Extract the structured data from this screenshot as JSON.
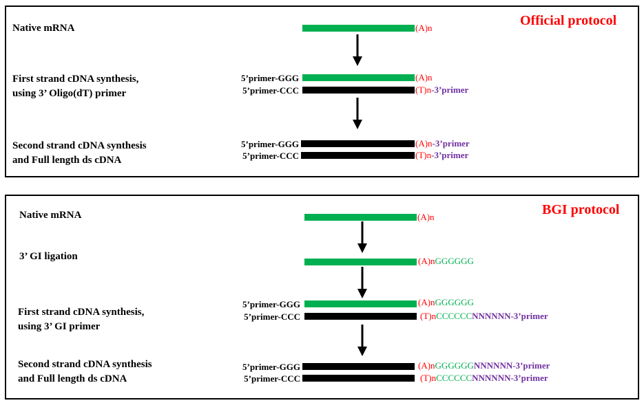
{
  "colors": {
    "title": "#ff0000",
    "mrna": "#00b050",
    "cdna": "#000000",
    "polyA": "#ff0000",
    "g_tail": "#00b050",
    "primer_3": "#7030a0"
  },
  "official": {
    "title": "Official protocol",
    "steps": [
      {
        "label": "Native mRNA"
      },
      {
        "label": "First strand cDNA synthesis,",
        "label2": "using 3’ Oligo(dT)  primer"
      },
      {
        "label": "Second strand cDNA synthesis",
        "label2": "and Full length ds cDNA"
      }
    ],
    "rows": {
      "s1_tail": "(A)n",
      "s2_top_left": "5’primer-GGG",
      "s2_top_tail": "(A)n",
      "s2_bot_left": "5’primer-CCC",
      "s2_bot_tail_a": "(T)n",
      "s2_bot_tail_b": "-3’primer",
      "s3_top_left": "5’primer-GGG",
      "s3_top_tail_a": "(A)n",
      "s3_top_tail_b": "-3’primer",
      "s3_bot_left": "5’primer-CCC",
      "s3_bot_tail_a": "(T)n",
      "s3_bot_tail_b": "-3’primer"
    }
  },
  "bgi": {
    "title": "BGI protocol",
    "steps": [
      {
        "label": "Native mRNA"
      },
      {
        "label": "3’ GI ligation"
      },
      {
        "label": "First strand cDNA synthesis,",
        "label2": "using 3’ GI primer"
      },
      {
        "label": "Second strand cDNA synthesis",
        "label2": "and Full length ds cDNA"
      }
    ],
    "rows": {
      "s1_tail": "(A)n",
      "s2_tail_a": "(A)n",
      "s2_tail_b": "GGGGGG",
      "s3_top_left": "5’primer-GGG",
      "s3_top_tail_a": "(A)n",
      "s3_top_tail_b": "GGGGGG",
      "s3_bot_left": "5’primer-CCC",
      "s3_bot_tail_a": "(T)n",
      "s3_bot_tail_b": "CCCCCC",
      "s3_bot_tail_c": "NNNNNN-3’primer",
      "s4_top_left": "5’primer-GGG",
      "s4_top_tail_a": "(A)n",
      "s4_top_tail_b": "GGGGGG",
      "s4_top_tail_c": "NNNNNN-3’primer",
      "s4_bot_left": "5’primer-CCC",
      "s4_bot_tail_a": "(T)n",
      "s4_bot_tail_b": "CCCCCC",
      "s4_bot_tail_c": "NNNNNN-3’primer"
    }
  }
}
